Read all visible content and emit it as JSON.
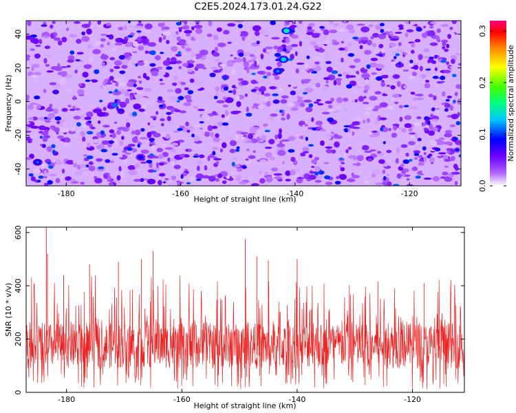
{
  "title": "C2E5.2024.173.01.24.G22",
  "chart_data": [
    {
      "type": "heatmap",
      "title": "C2E5.2024.173.01.24.G22",
      "xlabel": "Height of straight line (km)",
      "ylabel": "Frequency (Hz)",
      "xlim": [
        -187.0,
        -111.0
      ],
      "ylim": [
        -50,
        48
      ],
      "xticks": [
        -180,
        -160,
        -140,
        -120
      ],
      "yticks": [
        40,
        20,
        0,
        -20,
        -40
      ],
      "colorbar": {
        "label": "Normalized spectral amplitude",
        "range": [
          0,
          0.32
        ],
        "ticks": [
          0.0,
          0.1,
          0.2,
          0.3
        ],
        "colors": [
          "#ffffff",
          "#8a00ff",
          "#0000ff",
          "#00ffff",
          "#00ff00",
          "#ffff00",
          "#ff8000",
          "#ff0000",
          "#ff0080"
        ]
      },
      "notable_peaks": [
        {
          "x": -141.5,
          "y": 42,
          "value": 0.17
        },
        {
          "x": -142.0,
          "y": 25,
          "value": 0.15
        },
        {
          "x": -143.0,
          "y": 18,
          "value": 0.12
        },
        {
          "x": -185.0,
          "y": -36,
          "value": 0.11
        },
        {
          "x": -167.0,
          "y": -33,
          "value": 0.09
        }
      ],
      "background_level": [
        0.01,
        0.06
      ]
    },
    {
      "type": "line",
      "xlabel": "Height of straight line (km)",
      "ylabel": "SNR (10 * v/v)",
      "xlim": [
        -187.0,
        -111.0
      ],
      "ylim": [
        0,
        620
      ],
      "xticks": [
        -180,
        -160,
        -140,
        -120
      ],
      "yticks": [
        0,
        200,
        400,
        600
      ],
      "color": "#ee2020",
      "typical_range": [
        90,
        260
      ],
      "peaks": [
        {
          "x": -183.5,
          "y": 620
        },
        {
          "x": -183.3,
          "y": 520
        },
        {
          "x": -149.0,
          "y": 575
        },
        {
          "x": -165.0,
          "y": 530
        },
        {
          "x": -167.0,
          "y": 500
        },
        {
          "x": -171.0,
          "y": 490
        },
        {
          "x": -147.0,
          "y": 510
        },
        {
          "x": -145.0,
          "y": 495
        },
        {
          "x": -176.0,
          "y": 480
        },
        {
          "x": -180.5,
          "y": 440
        },
        {
          "x": -140.0,
          "y": 500
        },
        {
          "x": -126.0,
          "y": 415
        },
        {
          "x": -118.0,
          "y": 410
        }
      ]
    }
  ]
}
